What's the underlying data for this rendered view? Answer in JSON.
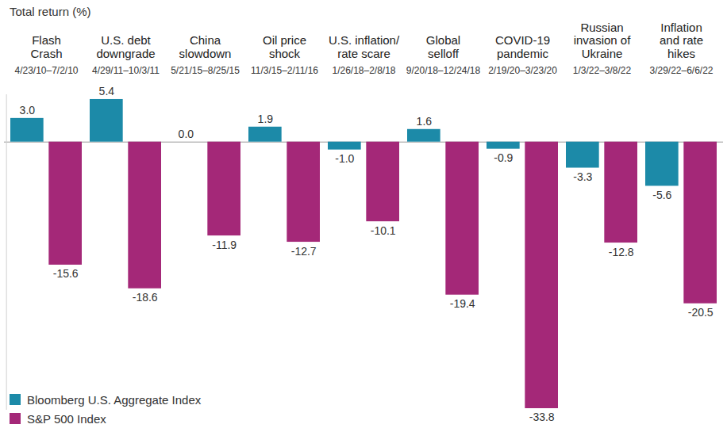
{
  "chart_data": {
    "type": "bar",
    "title": "Total return (%)",
    "categories": [
      "Flash\nCrash",
      "U.S. debt\ndowngrade",
      "China\nslowdown",
      "Oil price\nshock",
      "U.S. inflation/\nrate scare",
      "Global\nselloff",
      "COVID-19\npandemic",
      "Russian\ninvasion of\nUkraine",
      "Inflation\nand rate\nhikes"
    ],
    "periods": [
      "4/23/10–7/2/10",
      "4/29/11–10/3/11",
      "5/21/15–8/25/15",
      "11/3/15–2/11/16",
      "1/26/18–2/8/18",
      "9/20/18–12/24/18",
      "2/19/20–3/23/20",
      "1/3/22–3/8/22",
      "3/29/22–6/6/22"
    ],
    "series": [
      {
        "name": "Bloomberg U.S. Aggregate Index",
        "color": "#1c8aa8",
        "values": [
          3.0,
          5.4,
          0.0,
          1.9,
          -1.0,
          1.6,
          -0.9,
          -3.3,
          -5.6
        ],
        "value_labels": [
          "3.0",
          "5.4",
          "0.0",
          "1.9",
          "-1.0",
          "1.6",
          "-0.9",
          "-3.3",
          "-5.6"
        ]
      },
      {
        "name": "S&P 500 Index",
        "color": "#a42878",
        "values": [
          -15.6,
          -18.6,
          -11.9,
          -12.7,
          -10.1,
          -19.4,
          -33.8,
          -12.8,
          -20.5
        ],
        "value_labels": [
          "-15.6",
          "-18.6",
          "-11.9",
          "-12.7",
          "-10.1",
          "-19.4",
          "-33.8",
          "-12.8",
          "-20.5"
        ]
      }
    ],
    "ylim": [
      -34,
      6
    ],
    "yticks": [
      0
    ],
    "tick_labels": false,
    "data_labels": true,
    "legend": "bottom-left"
  }
}
